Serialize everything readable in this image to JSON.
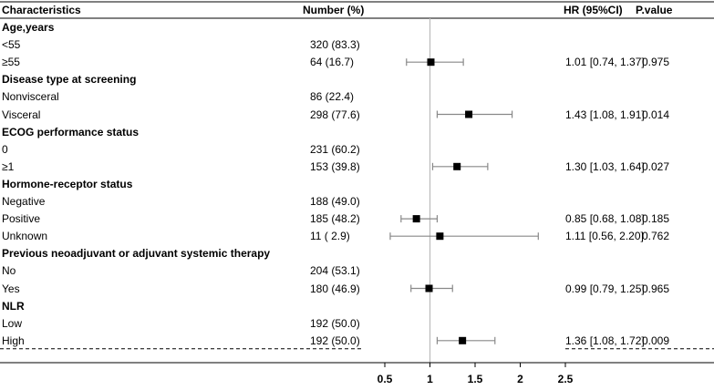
{
  "chart_data": {
    "type": "forest",
    "headers": {
      "characteristics": "Characteristics",
      "number": "Number (%)",
      "hr": "HR (95%CI)",
      "pvalue": "P.value"
    },
    "rows": [
      {
        "label": "Age,years",
        "group": true
      },
      {
        "label": "<55",
        "number": "320 (83.3)"
      },
      {
        "label": "≥55",
        "number": "64 (16.7)",
        "hr": 1.01,
        "lo": 0.74,
        "hi": 1.37,
        "hr_text": "1.01 [0.74, 1.37]",
        "p": "0.975"
      },
      {
        "label": "Disease type at screening",
        "group": true
      },
      {
        "label": "Nonvisceral",
        "number": "86 (22.4)"
      },
      {
        "label": "Visceral",
        "number": "298 (77.6)",
        "hr": 1.43,
        "lo": 1.08,
        "hi": 1.91,
        "hr_text": "1.43 [1.08, 1.91]",
        "p": "0.014"
      },
      {
        "label": "ECOG performance status",
        "group": true
      },
      {
        "label": "0",
        "number": "231 (60.2)"
      },
      {
        "label": "≥1",
        "number": "153 (39.8)",
        "hr": 1.3,
        "lo": 1.03,
        "hi": 1.64,
        "hr_text": "1.30 [1.03, 1.64]",
        "p": "0.027"
      },
      {
        "label": "Hormone-receptor status",
        "group": true
      },
      {
        "label": "Negative",
        "number": "188 (49.0)"
      },
      {
        "label": "Positive",
        "number": "185 (48.2)",
        "hr": 0.85,
        "lo": 0.68,
        "hi": 1.08,
        "hr_text": "0.85 [0.68, 1.08]",
        "p": "0.185"
      },
      {
        "label": "Unknown",
        "number": "11 ( 2.9)",
        "hr": 1.11,
        "lo": 0.56,
        "hi": 2.2,
        "hr_text": "1.11 [0.56, 2.20]",
        "p": "0.762"
      },
      {
        "label": "Previous neoadjuvant or adjuvant systemic therapy",
        "group": true
      },
      {
        "label": "No",
        "number": "204 (53.1)"
      },
      {
        "label": "Yes",
        "number": "180 (46.9)",
        "hr": 0.99,
        "lo": 0.79,
        "hi": 1.25,
        "hr_text": "0.99 [0.79, 1.25]",
        "p": "0.965"
      },
      {
        "label": "NLR",
        "group": true
      },
      {
        "label": "Low",
        "number": "192 (50.0)"
      },
      {
        "label": "High",
        "number": "192 (50.0)",
        "hr": 1.36,
        "lo": 1.08,
        "hi": 1.72,
        "hr_text": "1.36 [1.08, 1.72]",
        "p": "0.009"
      }
    ],
    "x_ticks": [
      "0.5",
      "1",
      "1.5",
      "2",
      "2.5"
    ],
    "x_range": [
      0.5,
      2.5
    ],
    "reference_line": 1,
    "colors": {
      "ci_line": "#888888",
      "point": "#000000",
      "reference_line": "#bbbbbb",
      "text": "#000000"
    }
  }
}
